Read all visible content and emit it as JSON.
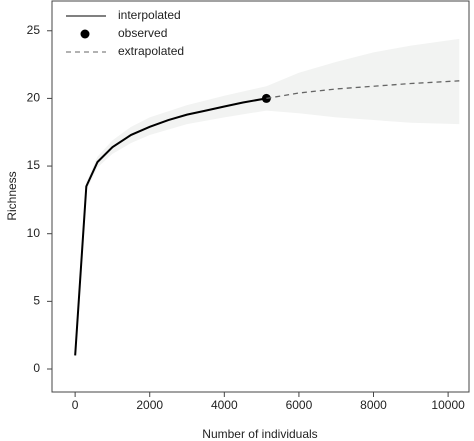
{
  "chart_data": {
    "type": "line",
    "xlabel": "Number of individuals",
    "ylabel": "Richness",
    "xlim": [
      -620,
      10560
    ],
    "ylim": [
      -1.7,
      27.2
    ],
    "xticks": [
      0,
      2000,
      4000,
      6000,
      8000,
      10000
    ],
    "yticks": [
      0,
      5,
      10,
      15,
      20,
      25
    ],
    "legend": "top-left",
    "band": {
      "color": "#f2f3f2",
      "x": [
        1,
        300,
        600,
        1000,
        1500,
        2000,
        3000,
        4000,
        5128,
        6000,
        7000,
        8000,
        9000,
        10300
      ],
      "lower": [
        1,
        13.2,
        14.9,
        15.9,
        16.7,
        17.3,
        18.1,
        18.6,
        19.1,
        18.9,
        18.6,
        18.4,
        18.2,
        18.1
      ],
      "upper": [
        1,
        13.8,
        15.7,
        16.9,
        17.9,
        18.6,
        19.5,
        20.2,
        20.9,
        21.9,
        22.7,
        23.4,
        23.9,
        24.4
      ]
    },
    "series": [
      {
        "name": "interpolated",
        "color": "#000000",
        "style": "solid",
        "x": [
          1,
          300,
          600,
          1000,
          1500,
          2000,
          2500,
          3000,
          3500,
          4000,
          4500,
          5128
        ],
        "values": [
          1,
          13.5,
          15.3,
          16.4,
          17.3,
          17.9,
          18.4,
          18.8,
          19.1,
          19.4,
          19.7,
          20
        ]
      },
      {
        "name": "observed",
        "color": "#000000",
        "style": "point",
        "x": [
          5128
        ],
        "values": [
          20
        ]
      },
      {
        "name": "extrapolated",
        "color": "#666666",
        "style": "dashed",
        "x": [
          5128,
          6000,
          7000,
          8000,
          9000,
          10300
        ],
        "values": [
          20,
          20.4,
          20.7,
          20.9,
          21.1,
          21.3
        ]
      }
    ]
  }
}
